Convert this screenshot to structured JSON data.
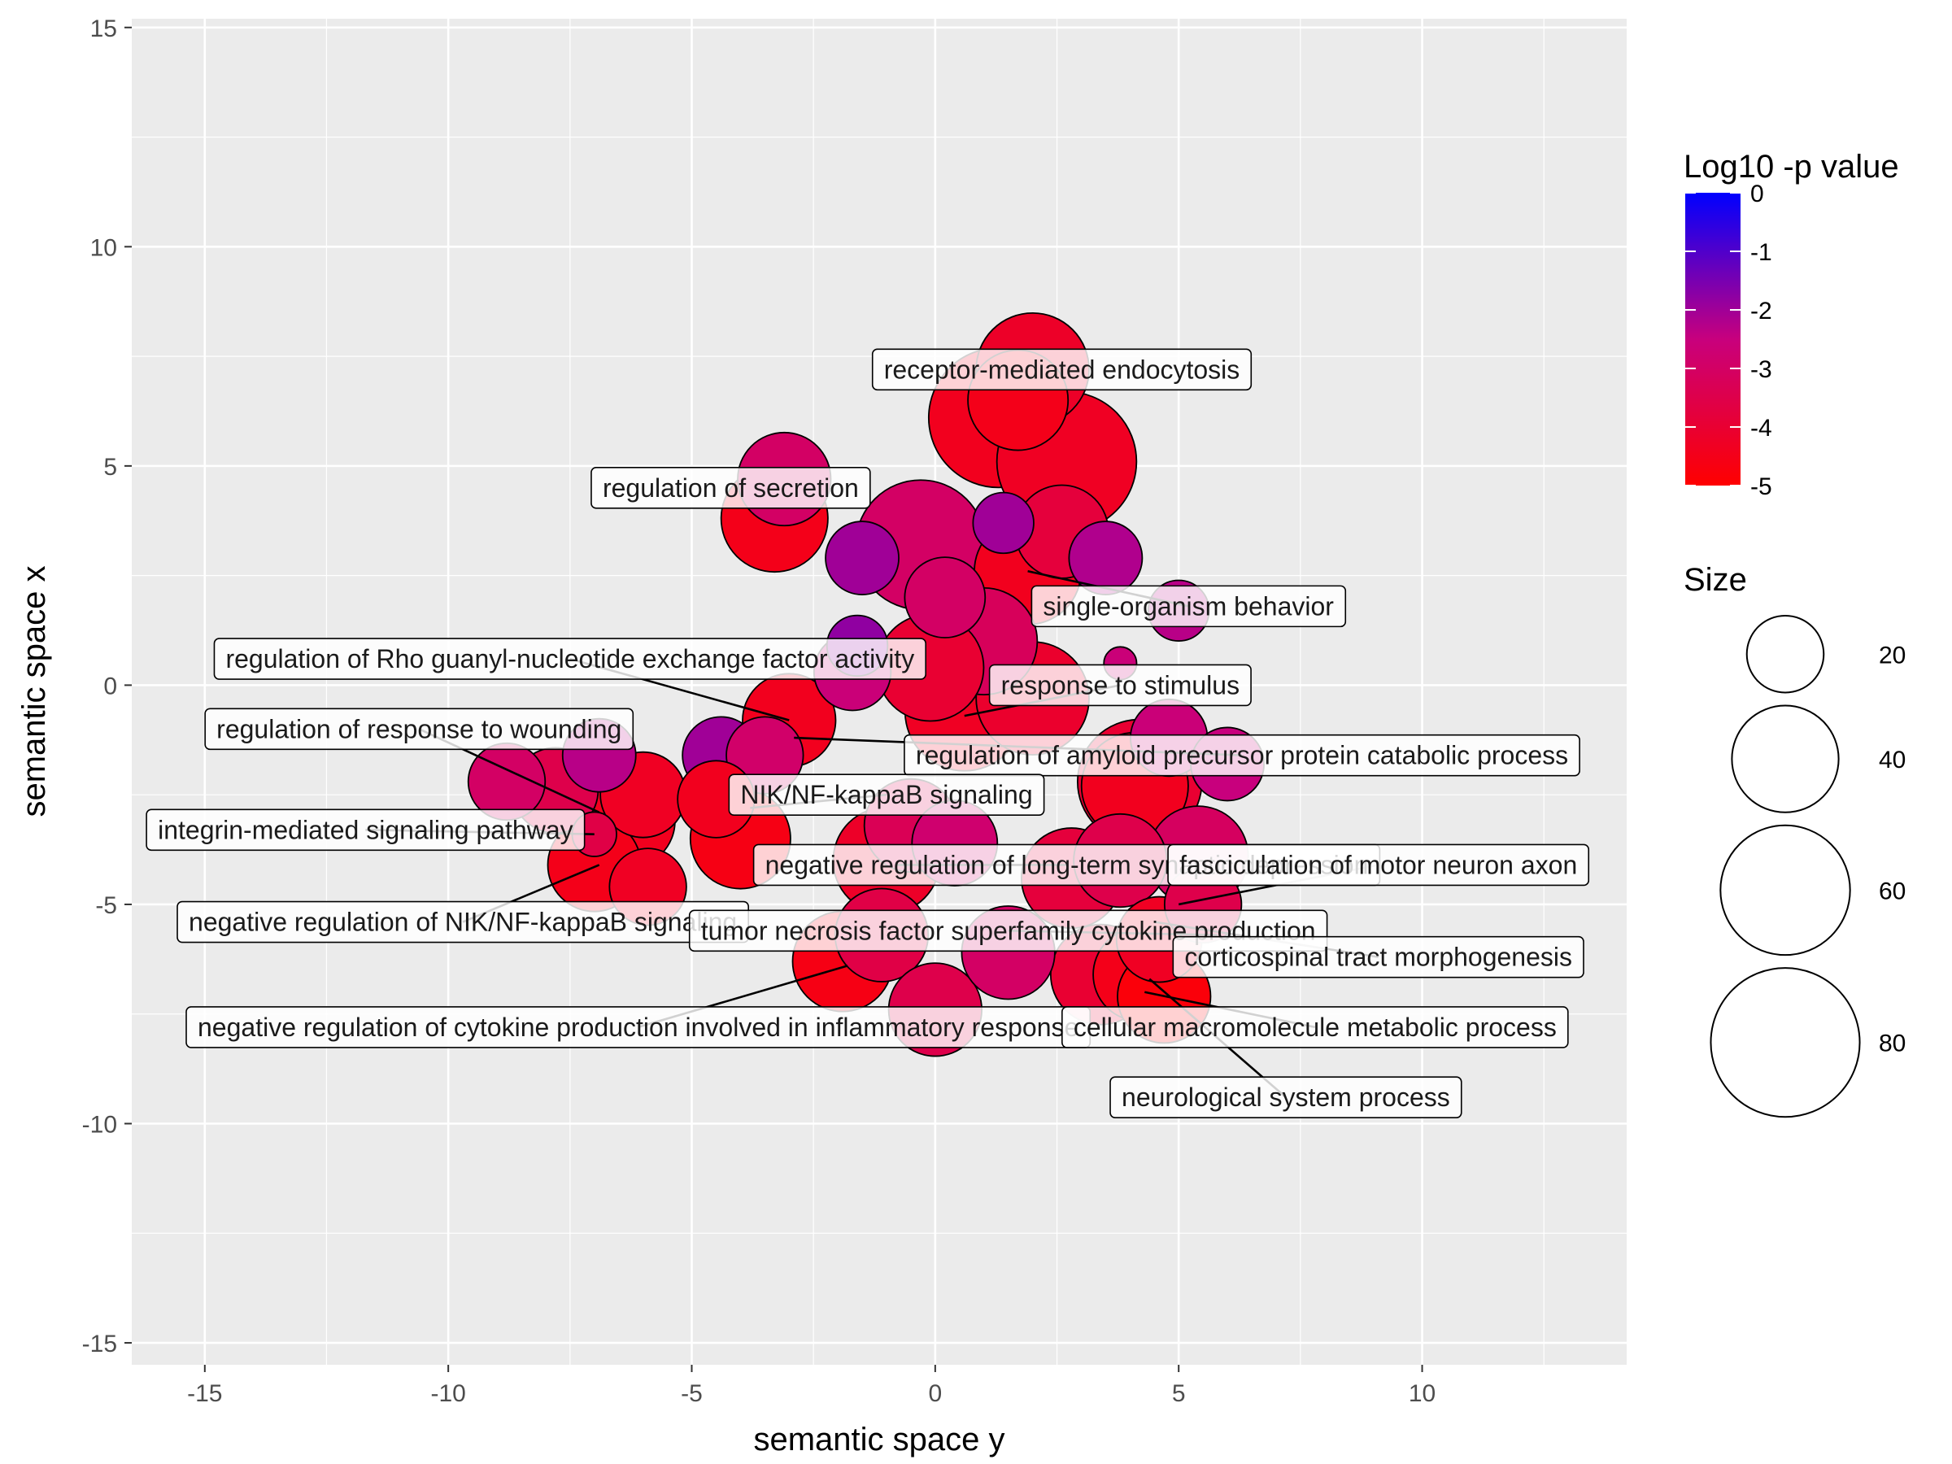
{
  "chart_data": {
    "type": "scatter",
    "xlabel": "semantic space y",
    "ylabel": "semantic space x",
    "xlim": [
      -16.5,
      14.2
    ],
    "ylim": [
      -15.5,
      15.2
    ],
    "x_ticks": [
      -15,
      -10,
      -5,
      0,
      5,
      10
    ],
    "y_ticks": [
      -15,
      -10,
      -5,
      0,
      5,
      10,
      15
    ],
    "x_tick_labels": [
      "-15",
      "-10",
      "-5",
      "0",
      "5",
      "10"
    ],
    "y_tick_labels": [
      "-15",
      "-10",
      "-5",
      "0",
      "5",
      "10",
      "15"
    ],
    "grid": true,
    "color_legend": {
      "title": "Log10 -p value",
      "min": -5,
      "max": 0,
      "low_color": "#ff0000",
      "high_color": "#0000ff",
      "breaks": [
        0,
        -1,
        -2,
        -3,
        -4,
        -5
      ],
      "break_labels": [
        "0",
        "-1",
        "-2",
        "-3",
        "-4",
        "-5"
      ]
    },
    "size_legend": {
      "title": "Size",
      "breaks": [
        20,
        40,
        60,
        80
      ],
      "break_labels": [
        "20",
        "40",
        "60",
        "80"
      ]
    },
    "bubbles": [
      {
        "x": 2.0,
        "y": 7.2,
        "size": 45,
        "log10p": -4.2
      },
      {
        "x": 1.3,
        "y": 6.1,
        "size": 70,
        "log10p": -4.4
      },
      {
        "x": 1.7,
        "y": 6.5,
        "size": 35,
        "log10p": -4.5
      },
      {
        "x": 2.7,
        "y": 5.1,
        "size": 70,
        "log10p": -4.3
      },
      {
        "x": 1.4,
        "y": 3.7,
        "size": 12,
        "log10p": -2.0
      },
      {
        "x": 2.6,
        "y": 3.5,
        "size": 30,
        "log10p": -3.8
      },
      {
        "x": 3.5,
        "y": 2.9,
        "size": 18,
        "log10p": -2.2
      },
      {
        "x": -3.1,
        "y": 4.7,
        "size": 30,
        "log10p": -3.0
      },
      {
        "x": -3.3,
        "y": 3.8,
        "size": 40,
        "log10p": -4.5
      },
      {
        "x": -1.5,
        "y": 2.9,
        "size": 18,
        "log10p": -2.0
      },
      {
        "x": -0.3,
        "y": 3.2,
        "size": 60,
        "log10p": -3.0
      },
      {
        "x": 1.9,
        "y": 2.6,
        "size": 40,
        "log10p": -4.4
      },
      {
        "x": 0.2,
        "y": 2.0,
        "size": 22,
        "log10p": -3.0
      },
      {
        "x": 5.0,
        "y": 1.7,
        "size": 12,
        "log10p": -2.3
      },
      {
        "x": -1.6,
        "y": 0.9,
        "size": 12,
        "log10p": -1.8
      },
      {
        "x": 1.0,
        "y": 1.0,
        "size": 40,
        "log10p": -3.2
      },
      {
        "x": -1.7,
        "y": 0.3,
        "size": 20,
        "log10p": -2.6
      },
      {
        "x": 3.8,
        "y": 0.5,
        "size": 3,
        "log10p": -2.6
      },
      {
        "x": -0.1,
        "y": 0.4,
        "size": 40,
        "log10p": -4.0
      },
      {
        "x": 2.0,
        "y": -0.3,
        "size": 45,
        "log10p": -4.1
      },
      {
        "x": 0.6,
        "y": -0.6,
        "size": 50,
        "log10p": -4.3
      },
      {
        "x": -4.4,
        "y": -1.6,
        "size": 20,
        "log10p": -2.0
      },
      {
        "x": -3.5,
        "y": -1.6,
        "size": 20,
        "log10p": -2.9
      },
      {
        "x": -3.0,
        "y": -0.8,
        "size": 30,
        "log10p": -4.4
      },
      {
        "x": -6.9,
        "y": -1.6,
        "size": 18,
        "log10p": -2.3
      },
      {
        "x": -8.8,
        "y": -2.2,
        "size": 20,
        "log10p": -3.0
      },
      {
        "x": -7.8,
        "y": -2.4,
        "size": 25,
        "log10p": -3.5
      },
      {
        "x": -6.9,
        "y": -2.7,
        "size": 35,
        "log10p": -2.7
      },
      {
        "x": -6.0,
        "y": -2.5,
        "size": 25,
        "log10p": -4.3
      },
      {
        "x": -6.3,
        "y": -3.1,
        "size": 30,
        "log10p": -4.4
      },
      {
        "x": -7.0,
        "y": -3.4,
        "size": 6,
        "log10p": -3.6
      },
      {
        "x": -4.5,
        "y": -2.6,
        "size": 20,
        "log10p": -4.4
      },
      {
        "x": -4.0,
        "y": -3.5,
        "size": 35,
        "log10p": -4.6
      },
      {
        "x": -7.0,
        "y": -4.1,
        "size": 30,
        "log10p": -4.5
      },
      {
        "x": -5.9,
        "y": -4.6,
        "size": 20,
        "log10p": -4.3
      },
      {
        "x": -1.0,
        "y": -4.0,
        "size": 40,
        "log10p": -4.2
      },
      {
        "x": -0.5,
        "y": -3.2,
        "size": 30,
        "log10p": -3.3
      },
      {
        "x": 0.4,
        "y": -3.6,
        "size": 25,
        "log10p": -2.8
      },
      {
        "x": 4.8,
        "y": -1.2,
        "size": 20,
        "log10p": -2.6
      },
      {
        "x": 6.0,
        "y": -1.8,
        "size": 18,
        "log10p": -2.5
      },
      {
        "x": 4.2,
        "y": -2.2,
        "size": 55,
        "log10p": -4.0
      },
      {
        "x": 4.1,
        "y": -2.3,
        "size": 40,
        "log10p": -4.4
      },
      {
        "x": 5.4,
        "y": -3.9,
        "size": 35,
        "log10p": -3.1
      },
      {
        "x": 2.8,
        "y": -4.4,
        "size": 35,
        "log10p": -3.8
      },
      {
        "x": 3.8,
        "y": -4.0,
        "size": 30,
        "log10p": -3.5
      },
      {
        "x": 5.5,
        "y": -5.0,
        "size": 20,
        "log10p": -3.5
      },
      {
        "x": 4.6,
        "y": -5.8,
        "size": 25,
        "log10p": -4.3
      },
      {
        "x": -1.1,
        "y": -5.7,
        "size": 30,
        "log10p": -3.6
      },
      {
        "x": 0.0,
        "y": -7.4,
        "size": 30,
        "log10p": -3.5
      },
      {
        "x": 1.5,
        "y": -6.1,
        "size": 30,
        "log10p": -3.0
      },
      {
        "x": 3.4,
        "y": -6.6,
        "size": 35,
        "log10p": -4.0
      },
      {
        "x": 4.2,
        "y": -6.6,
        "size": 30,
        "log10p": -4.5
      },
      {
        "x": 4.7,
        "y": -7.1,
        "size": 30,
        "log10p": -4.8
      },
      {
        "x": -1.9,
        "y": -6.3,
        "size": 35,
        "log10p": -4.6
      }
    ],
    "labels": [
      {
        "text": "receptor-mediated endocytosis",
        "x": 2.6,
        "y": 7.2,
        "px": 2.6,
        "py": 7.2
      },
      {
        "text": "regulation of secretion",
        "x": -4.2,
        "y": 4.5,
        "px": -4.2,
        "py": 4.5
      },
      {
        "text": "single-organism behavior",
        "x": 5.2,
        "y": 1.8,
        "px": 1.9,
        "py": 2.6
      },
      {
        "text": "regulation of Rho guanyl-nucleotide exchange factor activity",
        "x": -7.5,
        "y": 0.6,
        "px": -3.0,
        "py": -0.8
      },
      {
        "text": "response to stimulus",
        "x": 3.8,
        "y": 0.0,
        "px": 0.6,
        "py": -0.7
      },
      {
        "text": "regulation of response to wounding",
        "x": -10.6,
        "y": -1.0,
        "px": -6.9,
        "py": -2.9
      },
      {
        "text": "regulation of amyloid precursor protein catabolic process",
        "x": 6.3,
        "y": -1.6,
        "px": -2.9,
        "py": -1.2
      },
      {
        "text": "NIK/NF-kappaB signaling",
        "x": -1.0,
        "y": -2.5,
        "px": -3.8,
        "py": -2.8
      },
      {
        "text": "integrin-mediated signaling pathway",
        "x": -11.7,
        "y": -3.3,
        "px": -7.0,
        "py": -3.4
      },
      {
        "text": "negative regulation of long-term synaptic depression",
        "x": 2.7,
        "y": -4.1,
        "px": -0.8,
        "py": -4.1
      },
      {
        "text": "fasciculation of motor neuron axon",
        "x": 9.1,
        "y": -4.1,
        "px": 5.0,
        "py": -5.0
      },
      {
        "text": "negative regulation of NIK/NF-kappaB signaling",
        "x": -9.7,
        "y": -5.4,
        "px": -6.9,
        "py": -4.1
      },
      {
        "text": "tumor necrosis factor superfamily cytokine production",
        "x": 1.5,
        "y": -5.6,
        "px": 5.8,
        "py": -5.7
      },
      {
        "text": "corticospinal tract morphogenesis",
        "x": 9.1,
        "y": -6.2,
        "px": 4.5,
        "py": -5.4
      },
      {
        "text": "negative regulation of cytokine production involved in inflammatory response",
        "x": -6.1,
        "y": -7.8,
        "px": -1.8,
        "py": -6.4
      },
      {
        "text": "cellular macromolecule metabolic process",
        "x": 7.8,
        "y": -7.8,
        "px": 4.3,
        "py": -7.0
      },
      {
        "text": "neurological system process",
        "x": 7.2,
        "y": -9.4,
        "px": 4.4,
        "py": -6.7
      }
    ]
  }
}
